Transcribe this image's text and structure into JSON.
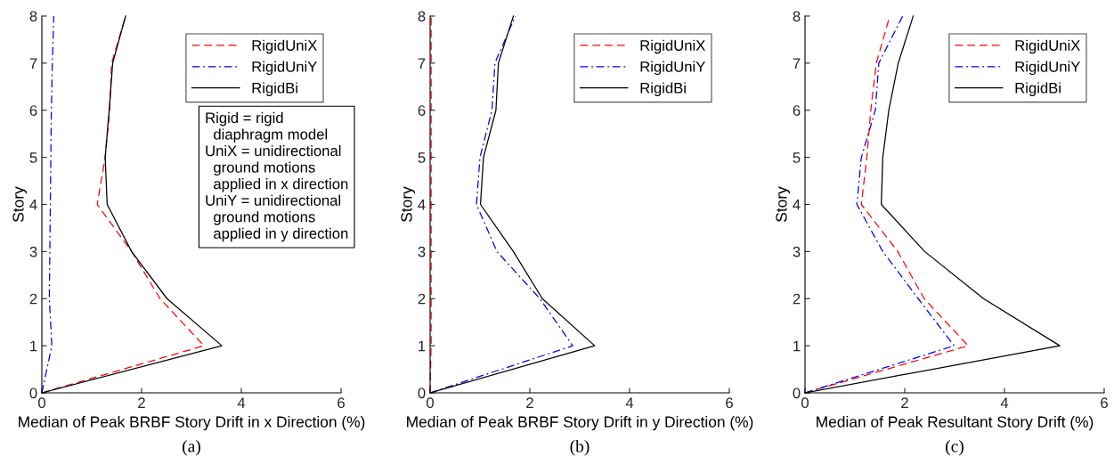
{
  "chart_data": [
    {
      "type": "line",
      "xlabel": "Median of Peak BRBF Story Drift in x Direction (%)",
      "ylabel": "Story",
      "xlim": [
        0,
        6
      ],
      "xticks": [
        0,
        2,
        4,
        6
      ],
      "ylim": [
        0,
        8
      ],
      "yticks": [
        0,
        1,
        2,
        3,
        4,
        5,
        6,
        7,
        8
      ],
      "grid": false,
      "legend": "top right",
      "series": [
        {
          "name": "RigidUniX",
          "color": "#ff0000",
          "line_style": "dashed",
          "x": [
            0,
            3.25,
            2.37,
            1.8,
            1.11,
            1.27,
            1.36,
            1.4,
            1.68
          ],
          "values": [
            0,
            1,
            2,
            3,
            4,
            5,
            6,
            7,
            8
          ]
        },
        {
          "name": "RigidUniY",
          "color": "#0000ff",
          "line_style": "dashdot",
          "x": [
            0,
            0.2,
            0.15,
            0.16,
            0.17,
            0.18,
            0.19,
            0.21,
            0.24
          ],
          "values": [
            0,
            1,
            2,
            3,
            4,
            5,
            6,
            7,
            8
          ]
        },
        {
          "name": "RigidBi",
          "color": "#000000",
          "line_style": "solid",
          "x": [
            0,
            3.61,
            2.51,
            1.8,
            1.31,
            1.27,
            1.35,
            1.42,
            1.68
          ],
          "values": [
            0,
            1,
            2,
            3,
            4,
            5,
            6,
            7,
            8
          ]
        }
      ],
      "annotations": [
        "Rigid = rigid\n  diaphragm model\nUniX = unidirectional\n  ground motions\n  applied in x direction\nUniY = unidirectional\n  ground motions\n  applied in y direction",
        "(a)"
      ]
    },
    {
      "type": "line",
      "xlabel": "Median of Peak BRBF Story Drift in y Direction (%)",
      "ylabel": "Story",
      "xlim": [
        0,
        6
      ],
      "xticks": [
        0,
        2,
        4,
        6
      ],
      "ylim": [
        0,
        8
      ],
      "yticks": [
        0,
        1,
        2,
        3,
        4,
        5,
        6,
        7,
        8
      ],
      "grid": false,
      "legend": "top right",
      "series": [
        {
          "name": "RigidUniX",
          "color": "#ff0000",
          "line_style": "dashed",
          "x": [
            0,
            0.02,
            0.02,
            0.02,
            0.02,
            0.02,
            0.02,
            0.02,
            0.02
          ],
          "values": [
            0,
            1,
            2,
            3,
            4,
            5,
            6,
            7,
            8
          ]
        },
        {
          "name": "RigidUniY",
          "color": "#0000ff",
          "line_style": "dashdot",
          "x": [
            0,
            2.86,
            2.2,
            1.34,
            0.93,
            1.0,
            1.24,
            1.3,
            1.71
          ],
          "values": [
            0,
            1,
            2,
            3,
            4,
            5,
            6,
            7,
            8
          ]
        },
        {
          "name": "RigidBi",
          "color": "#000000",
          "line_style": "solid",
          "x": [
            0,
            3.3,
            2.25,
            1.67,
            1.01,
            1.07,
            1.32,
            1.37,
            1.67
          ],
          "values": [
            0,
            1,
            2,
            3,
            4,
            5,
            6,
            7,
            8
          ]
        }
      ],
      "annotations": [
        "(b)"
      ]
    },
    {
      "type": "line",
      "xlabel": "Median of Peak Resultant Story Drift (%)",
      "ylabel": "Story",
      "xlim": [
        0,
        6
      ],
      "xticks": [
        0,
        2,
        4,
        6
      ],
      "ylim": [
        0,
        8
      ],
      "yticks": [
        0,
        1,
        2,
        3,
        4,
        5,
        6,
        7,
        8
      ],
      "grid": false,
      "legend": "top right",
      "series": [
        {
          "name": "RigidUniX",
          "color": "#ff0000",
          "line_style": "dashed",
          "x": [
            0,
            3.27,
            2.39,
            1.86,
            1.13,
            1.24,
            1.32,
            1.43,
            1.7
          ],
          "values": [
            0,
            1,
            2,
            3,
            4,
            5,
            6,
            7,
            8
          ]
        },
        {
          "name": "RigidUniY",
          "color": "#0000ff",
          "line_style": "dashdot",
          "x": [
            0,
            2.99,
            2.27,
            1.56,
            1.04,
            1.13,
            1.41,
            1.48,
            1.96
          ],
          "values": [
            0,
            1,
            2,
            3,
            4,
            5,
            6,
            7,
            8
          ]
        },
        {
          "name": "RigidBi",
          "color": "#000000",
          "line_style": "solid",
          "x": [
            0,
            5.11,
            3.58,
            2.4,
            1.53,
            1.56,
            1.68,
            1.87,
            2.17
          ],
          "values": [
            0,
            1,
            2,
            3,
            4,
            5,
            6,
            7,
            8
          ]
        }
      ],
      "annotations": [
        "(c)"
      ]
    }
  ]
}
